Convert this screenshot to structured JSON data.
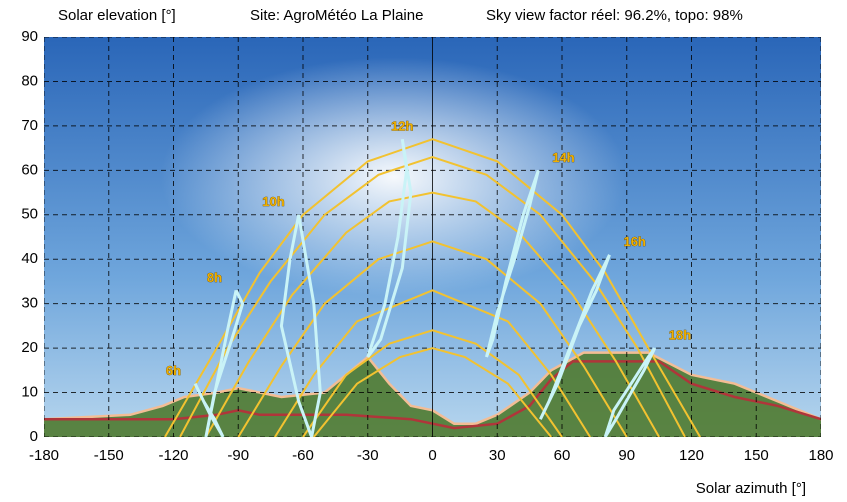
{
  "chart_data": {
    "type": "line",
    "title": "Site: AgroMétéo La Plaine",
    "subtitle": "Sky view factor réel: 96.2%, topo: 98%",
    "y_label": "Solar elevation [°]",
    "x_label": "Solar azimuth [°]",
    "xlim": [
      -180,
      180
    ],
    "ylim": [
      0,
      90
    ],
    "xticks": [
      -180,
      -150,
      -120,
      -90,
      -60,
      -30,
      0,
      30,
      60,
      90,
      120,
      150,
      180
    ],
    "yticks": [
      0,
      10,
      20,
      30,
      40,
      50,
      60,
      70,
      80,
      90
    ],
    "grid": true,
    "horizons": [
      {
        "color": "#f3bd95",
        "fill": "#4f7a30",
        "x": [
          -180,
          -140,
          -125,
          -115,
          -100,
          -90,
          -70,
          -50,
          -40,
          -30,
          -20,
          -10,
          0,
          10,
          20,
          30,
          45,
          55,
          70,
          100,
          120,
          140,
          160,
          180
        ],
        "values": [
          4,
          5,
          7,
          9,
          10,
          11,
          9,
          10,
          14,
          18,
          12,
          7,
          6,
          3,
          3,
          5,
          10,
          15,
          19,
          19,
          14,
          12,
          8,
          4
        ]
      },
      {
        "color": "#b0353a",
        "x": [
          -180,
          -150,
          -120,
          -100,
          -90,
          -80,
          -40,
          -10,
          10,
          30,
          45,
          55,
          65,
          90,
          105,
          120,
          140,
          160,
          180
        ],
        "values": [
          4,
          4,
          4,
          5,
          6,
          5,
          5,
          4,
          2,
          3,
          7,
          13,
          17,
          17,
          17,
          12,
          9,
          7,
          4
        ]
      }
    ],
    "sun_paths": [
      {
        "color": "#f2c230",
        "x": [
          -124,
          -100,
          -80,
          -60,
          -30,
          0,
          30,
          60,
          80,
          100,
          124
        ],
        "values": [
          0,
          20,
          37,
          50,
          62,
          67,
          62,
          50,
          37,
          20,
          0
        ]
      },
      {
        "color": "#f2c230",
        "x": [
          -117,
          -95,
          -75,
          -50,
          -25,
          0,
          25,
          50,
          75,
          95,
          117
        ],
        "values": [
          0,
          20,
          35,
          50,
          59,
          63,
          59,
          50,
          35,
          20,
          0
        ]
      },
      {
        "color": "#f2c230",
        "x": [
          -105,
          -85,
          -65,
          -40,
          -20,
          0,
          20,
          40,
          65,
          85,
          105
        ],
        "values": [
          0,
          17,
          32,
          46,
          53,
          55,
          53,
          46,
          32,
          17,
          0
        ]
      },
      {
        "color": "#f2c230",
        "x": [
          -90,
          -70,
          -50,
          -25,
          0,
          25,
          50,
          70,
          90
        ],
        "values": [
          0,
          16,
          30,
          40,
          44,
          40,
          30,
          16,
          0
        ]
      },
      {
        "color": "#f2c230",
        "x": [
          -73,
          -55,
          -35,
          0,
          35,
          55,
          73
        ],
        "values": [
          0,
          14,
          26,
          33,
          26,
          14,
          0
        ]
      },
      {
        "color": "#f2c230",
        "x": [
          -60,
          -40,
          -20,
          0,
          20,
          40,
          60
        ],
        "values": [
          0,
          14,
          21,
          24,
          21,
          14,
          0
        ]
      },
      {
        "color": "#f2c230",
        "x": [
          -55,
          -35,
          -15,
          0,
          15,
          35,
          55
        ],
        "values": [
          0,
          12,
          18,
          20,
          18,
          12,
          0
        ]
      }
    ],
    "series": [
      {
        "name": "6h",
        "color": "#c9f3f7",
        "x": [
          -110,
          -106,
          -101,
          -97,
          -103,
          -108,
          -110
        ],
        "values": [
          12,
          8,
          4,
          0,
          5,
          10,
          12
        ]
      },
      {
        "name": "8h",
        "color": "#c9f3f7",
        "x": [
          -91,
          -95,
          -100,
          -105,
          -101,
          -93,
          -88,
          -91
        ],
        "values": [
          33,
          24,
          12,
          0,
          10,
          22,
          30,
          33
        ]
      },
      {
        "name": "10h",
        "color": "#c9f3f7",
        "x": [
          -62,
          -66,
          -70,
          -62,
          -56,
          -52,
          -55,
          -62
        ],
        "values": [
          50,
          40,
          25,
          8,
          0,
          10,
          30,
          50
        ]
      },
      {
        "name": "12h",
        "color": "#c9f3f7",
        "x": [
          -14,
          -12,
          -16,
          -22,
          -30,
          -24,
          -14,
          -10,
          -14
        ],
        "values": [
          67,
          60,
          45,
          30,
          18,
          22,
          38,
          55,
          67
        ]
      },
      {
        "name": "14h",
        "color": "#c9f3f7",
        "x": [
          49,
          45,
          38,
          30,
          25,
          28,
          34,
          42,
          49
        ],
        "values": [
          60,
          52,
          40,
          28,
          18,
          22,
          35,
          50,
          60
        ]
      },
      {
        "name": "16h",
        "color": "#c9f3f7",
        "x": [
          82,
          76,
          68,
          58,
          50,
          54,
          62,
          74,
          82
        ],
        "values": [
          41,
          33,
          25,
          12,
          4,
          8,
          18,
          33,
          41
        ]
      },
      {
        "name": "18h",
        "color": "#c9f3f7",
        "x": [
          103,
          98,
          92,
          85,
          80,
          84,
          92,
          100,
          103
        ],
        "values": [
          20,
          15,
          10,
          4,
          0,
          6,
          12,
          18,
          20
        ]
      }
    ]
  }
}
